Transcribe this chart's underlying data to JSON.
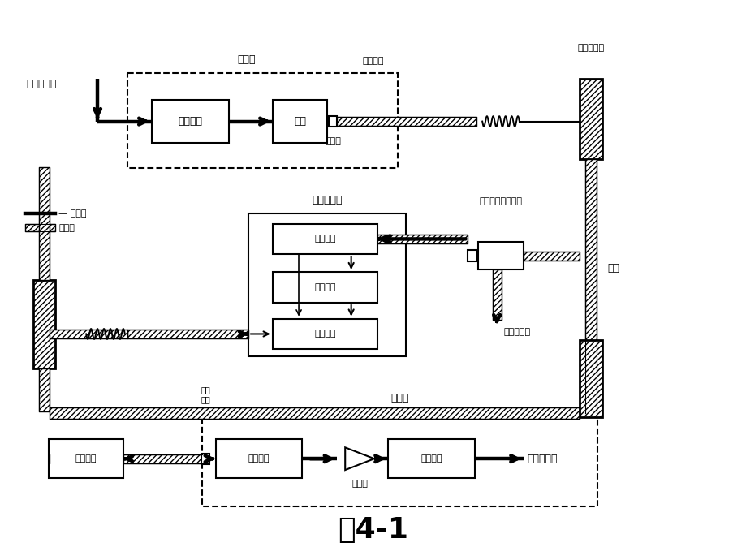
{
  "bg_color": "#ffffff",
  "title": "图4-1",
  "labels": {
    "transmitter": "发送机",
    "receiver": "接收机",
    "repeater": "再生中继器",
    "drive_circuit": "驱动电路",
    "light_source": "光源",
    "optical_receiver": "光接收机",
    "electronic_circuit": "电子线路",
    "optical_transmitter": "光发送机",
    "optical_amplifier": "光放大器",
    "optical_detector": "光检测器",
    "amplifier": "放大器",
    "signal_recovery": "信号恢复",
    "fiber_jumper_top": "光纤跳线",
    "fiber_jumper_mid": "光纤\n跳线",
    "connector": "连接器",
    "fiber_connector_box": "光纤接头盒",
    "optical_coupler": "光耦合器或分束器",
    "to_other": "到其他设备",
    "optical_fiber": "光纤",
    "input_signal": "电输入信号",
    "output_signal": "电信号输出",
    "legend_elec": "电信号",
    "legend_opt": "光信号"
  }
}
